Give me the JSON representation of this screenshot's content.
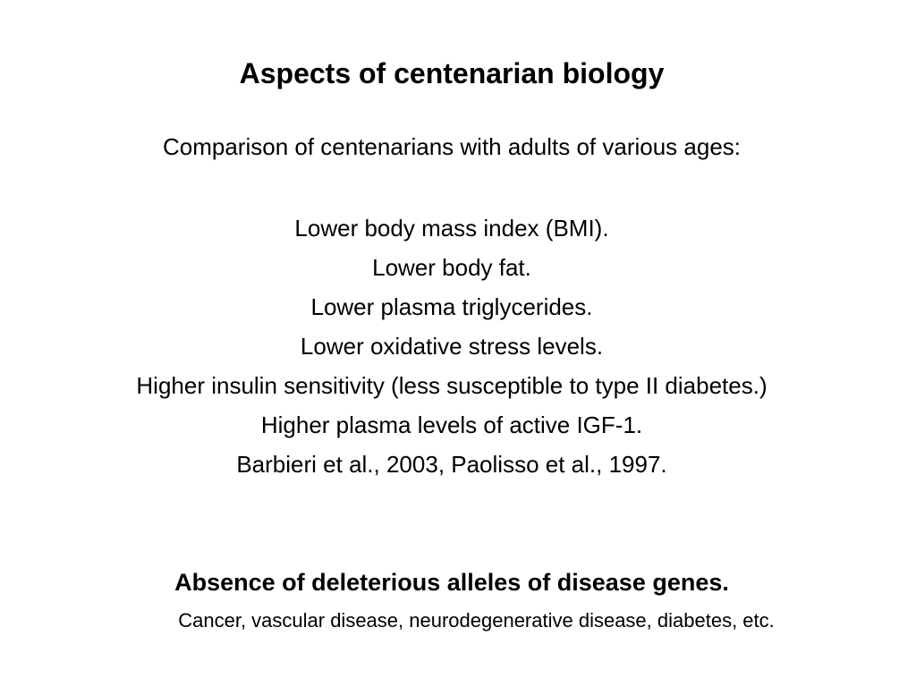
{
  "title": "Aspects of centenarian biology",
  "subtitle": "Comparison of centenarians with adults of various ages:",
  "findings": [
    "Lower body mass index (BMI).",
    "Lower body fat.",
    "Lower plasma triglycerides.",
    "Lower oxidative stress levels.",
    "Higher insulin sensitivity (less susceptible to type II diabetes.)",
    "Higher plasma levels of active IGF-1."
  ],
  "citation": "Barbieri et al., 2003, Paolisso et al., 1997.",
  "heading": "Absence of deleterious alleles of disease genes.",
  "detail": "Cancer, vascular disease, neurodegenerative disease, diabetes, etc."
}
